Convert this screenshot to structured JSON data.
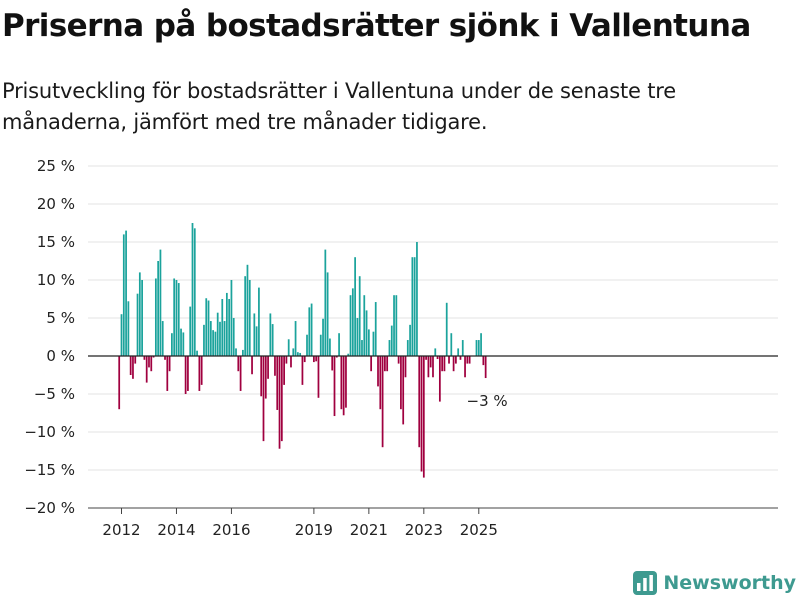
{
  "title": "Priserna på bostadsrätter sjönk i Vallentuna",
  "subtitle": "Prisutveckling för bostadsrätter i Vallentuna under de senaste tre månaderna, jämfört med tre månader tidigare.",
  "brand": {
    "name": "Newsworthy",
    "logo_icon": "bar-chart-icon",
    "color": "#3e9a90"
  },
  "chart_data": {
    "type": "bar",
    "x_start": "2011-12",
    "frequency": "monthly",
    "values": [
      -7,
      5.5,
      16,
      16.5,
      7.2,
      -2.5,
      -3,
      -1,
      8.2,
      11,
      10,
      -0.5,
      -3.5,
      -1.5,
      -2,
      -0.2,
      10.2,
      12.5,
      14,
      4.6,
      -0.5,
      -4.6,
      -2,
      3,
      10.2,
      10,
      9.6,
      3.6,
      3.1,
      -5,
      -4.6,
      6.5,
      17.5,
      16.8,
      0.7,
      -4.6,
      -3.8,
      4.1,
      7.6,
      7.3,
      4.6,
      3.4,
      3.2,
      5.7,
      4.5,
      7.5,
      4.6,
      8.3,
      7.5,
      10,
      5,
      1,
      -2,
      -4.6,
      0.8,
      10.5,
      12,
      10,
      -2.4,
      5.6,
      3.9,
      9,
      -5.3,
      -11.2,
      -5.6,
      -3,
      5.6,
      4.2,
      -2.6,
      -7.1,
      -12.2,
      -11.2,
      -3.8,
      -1,
      2.2,
      -1.5,
      1,
      4.6,
      0.5,
      0.4,
      -3.8,
      -0.8,
      2.8,
      6.4,
      6.9,
      -0.8,
      -0.7,
      -5.5,
      2.8,
      4.9,
      14,
      11,
      2.3,
      -1.9,
      -7.9,
      -0.2,
      3,
      -7,
      -7.8,
      -6.8,
      0.3,
      8,
      8.9,
      13,
      5,
      10.5,
      2.1,
      8,
      6,
      3.5,
      -2,
      3.2,
      7.1,
      -4,
      -7,
      -12,
      -2,
      -2,
      2.1,
      4,
      8,
      8,
      -1,
      -7,
      -9,
      -2.8,
      2.1,
      4.1,
      13,
      13,
      15,
      -12,
      -15.2,
      -16,
      -0.5,
      -2.8,
      -1.5,
      -2.8,
      1,
      -0.4,
      -6,
      -2,
      -2,
      7,
      -1,
      3,
      -2,
      -1,
      1,
      -0.5,
      2.1,
      -2.8,
      -1,
      -1,
      0,
      0,
      2.1,
      2.1,
      3,
      -1.2,
      -2.9
    ],
    "last_value_label": "−3 %",
    "ylim": [
      -20,
      25
    ],
    "y_ticks": [
      25,
      20,
      15,
      10,
      5,
      0,
      -5,
      -10,
      -15,
      -20
    ],
    "y_tick_labels": [
      "25 %",
      "20 %",
      "15 %",
      "10 %",
      "5 %",
      "0 %",
      "−5 %",
      "−10 %",
      "−15 %",
      "−20 %"
    ],
    "x_tick_labels": [
      "2012",
      "2014",
      "2016",
      "2019",
      "2021",
      "2023",
      "2025"
    ],
    "x_tick_months": [
      "2012-01",
      "2014-01",
      "2016-01",
      "2019-01",
      "2021-01",
      "2023-01",
      "2025-01"
    ],
    "grid": true,
    "positive_color": "#1ba39c",
    "negative_color": "#a0003f"
  }
}
